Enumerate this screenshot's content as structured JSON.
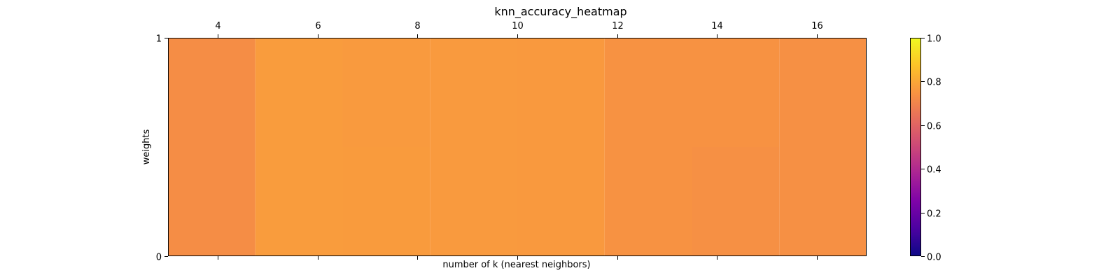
{
  "chart_data": {
    "type": "heatmap",
    "title": "knn_accuracy_heatmap",
    "xlabel": "number of k (nearest neighbors)",
    "ylabel": "weights",
    "colormap": "plasma",
    "x_axis_position": "top",
    "x_ticks": [
      4,
      6,
      8,
      10,
      12,
      14,
      16
    ],
    "x_range": [
      3,
      17
    ],
    "y_ticks": [
      0,
      1
    ],
    "y_range": [
      0,
      1
    ],
    "colorbar": {
      "range": [
        0,
        1
      ],
      "ticks": [
        "0.0",
        "0.2",
        "0.4",
        "0.6",
        "0.8",
        "1.0"
      ]
    },
    "grid": false,
    "cells": [
      {
        "x_start": 3.0,
        "x_end": 4.75,
        "y_start": 0.0,
        "y_end": 1.0,
        "value": 0.73
      },
      {
        "x_start": 4.75,
        "x_end": 6.5,
        "y_start": 0.0,
        "y_end": 1.0,
        "value": 0.77
      },
      {
        "x_start": 6.5,
        "x_end": 8.25,
        "y_start": 0.5,
        "y_end": 1.0,
        "value": 0.765
      },
      {
        "x_start": 6.5,
        "x_end": 8.25,
        "y_start": 0.0,
        "y_end": 0.5,
        "value": 0.768
      },
      {
        "x_start": 8.25,
        "x_end": 10.0,
        "y_start": 0.0,
        "y_end": 1.0,
        "value": 0.765
      },
      {
        "x_start": 10.0,
        "x_end": 11.75,
        "y_start": 0.0,
        "y_end": 1.0,
        "value": 0.764
      },
      {
        "x_start": 11.75,
        "x_end": 13.5,
        "y_start": 0.0,
        "y_end": 1.0,
        "value": 0.745
      },
      {
        "x_start": 13.5,
        "x_end": 15.25,
        "y_start": 0.5,
        "y_end": 1.0,
        "value": 0.745
      },
      {
        "x_start": 13.5,
        "x_end": 15.25,
        "y_start": 0.0,
        "y_end": 0.5,
        "value": 0.738
      },
      {
        "x_start": 15.25,
        "x_end": 17.0,
        "y_start": 0.0,
        "y_end": 1.0,
        "value": 0.738
      }
    ]
  }
}
